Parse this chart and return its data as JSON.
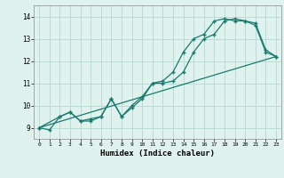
{
  "xlabel": "Humidex (Indice chaleur)",
  "ylabel": "",
  "bg_color": "#dff2ee",
  "grid_color": "#b8ddd6",
  "line_color": "#1a7a6e",
  "xlim": [
    -0.5,
    23.5
  ],
  "ylim": [
    8.5,
    14.5
  ],
  "xticks": [
    0,
    1,
    2,
    3,
    4,
    5,
    6,
    7,
    8,
    9,
    10,
    11,
    12,
    13,
    14,
    15,
    16,
    17,
    18,
    19,
    20,
    21,
    22,
    23
  ],
  "yticks": [
    9,
    10,
    11,
    12,
    13,
    14
  ],
  "line1_x": [
    0,
    1,
    2,
    3,
    4,
    5,
    6,
    7,
    8,
    9,
    10,
    11,
    12,
    13,
    14,
    15,
    16,
    17,
    18,
    19,
    20,
    21,
    22,
    23
  ],
  "line1_y": [
    9.0,
    8.9,
    9.5,
    9.7,
    9.3,
    9.4,
    9.5,
    10.3,
    9.5,
    9.9,
    10.3,
    11.0,
    11.0,
    11.1,
    11.5,
    12.4,
    13.0,
    13.2,
    13.8,
    13.9,
    13.8,
    13.7,
    12.5,
    12.2
  ],
  "line2_x": [
    0,
    2,
    3,
    4,
    5,
    6,
    7,
    8,
    9,
    10,
    11,
    12,
    13,
    14,
    15,
    16,
    17,
    18,
    19,
    20,
    21,
    22,
    23
  ],
  "line2_y": [
    9.0,
    9.5,
    9.7,
    9.3,
    9.3,
    9.5,
    10.3,
    9.5,
    10.0,
    10.4,
    11.0,
    11.1,
    11.5,
    12.4,
    13.0,
    13.2,
    13.8,
    13.9,
    13.8,
    13.8,
    13.6,
    12.4,
    12.2
  ],
  "line3_x": [
    0,
    23
  ],
  "line3_y": [
    9.0,
    12.2
  ]
}
